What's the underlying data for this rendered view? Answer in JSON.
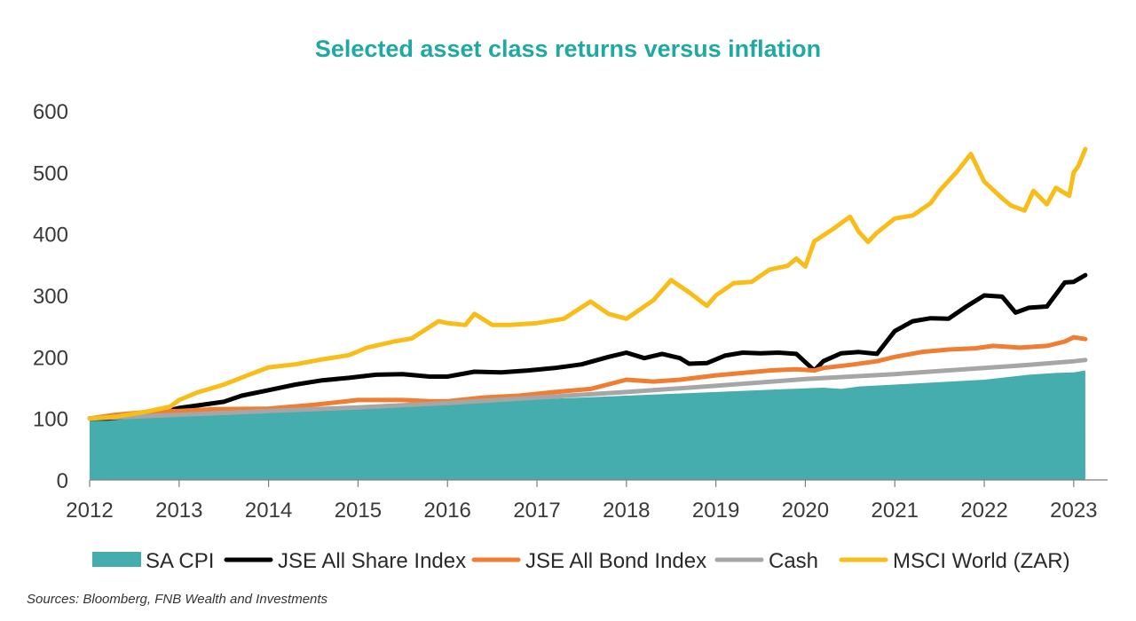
{
  "chart_data": {
    "type": "line",
    "title": "Selected asset class returns versus inflation",
    "xlabel": "",
    "ylabel": "",
    "xlim": [
      2012,
      2023.2
    ],
    "ylim": [
      0,
      600
    ],
    "y_ticks": [
      "0",
      "100",
      "200",
      "300",
      "400",
      "500",
      "600"
    ],
    "x_ticks": [
      "2012",
      "2013",
      "2014",
      "2015",
      "2016",
      "2017",
      "2018",
      "2019",
      "2020",
      "2021",
      "2022",
      "2023"
    ],
    "legend_position": "bottom",
    "grid": false,
    "series": [
      {
        "name": "SA CPI",
        "style": "area",
        "color": "#45adad",
        "points": [
          [
            2012.0,
            100
          ],
          [
            2013.0,
            106
          ],
          [
            2014.0,
            112
          ],
          [
            2015.0,
            117
          ],
          [
            2016.0,
            124
          ],
          [
            2017.0,
            131
          ],
          [
            2018.0,
            137
          ],
          [
            2019.0,
            143
          ],
          [
            2020.0,
            149
          ],
          [
            2020.2,
            150
          ],
          [
            2020.4,
            148
          ],
          [
            2020.6,
            152
          ],
          [
            2021.0,
            155
          ],
          [
            2021.5,
            159
          ],
          [
            2022.0,
            163
          ],
          [
            2022.5,
            171
          ],
          [
            2022.8,
            174
          ],
          [
            2023.0,
            175
          ],
          [
            2023.13,
            178
          ]
        ]
      },
      {
        "name": "JSE All Share Index",
        "style": "line",
        "color": "#000000",
        "points": [
          [
            2012.0,
            100
          ],
          [
            2012.2,
            100
          ],
          [
            2012.5,
            104
          ],
          [
            2012.8,
            110
          ],
          [
            2013.0,
            117
          ],
          [
            2013.2,
            121
          ],
          [
            2013.5,
            127
          ],
          [
            2013.7,
            137
          ],
          [
            2014.0,
            146
          ],
          [
            2014.3,
            155
          ],
          [
            2014.6,
            162
          ],
          [
            2014.9,
            166
          ],
          [
            2015.2,
            171
          ],
          [
            2015.5,
            172
          ],
          [
            2015.8,
            168
          ],
          [
            2016.0,
            168
          ],
          [
            2016.3,
            176
          ],
          [
            2016.6,
            175
          ],
          [
            2016.9,
            178
          ],
          [
            2017.2,
            182
          ],
          [
            2017.5,
            188
          ],
          [
            2017.8,
            200
          ],
          [
            2018.0,
            207
          ],
          [
            2018.2,
            198
          ],
          [
            2018.4,
            205
          ],
          [
            2018.6,
            198
          ],
          [
            2018.7,
            189
          ],
          [
            2018.9,
            190
          ],
          [
            2019.1,
            202
          ],
          [
            2019.3,
            207
          ],
          [
            2019.5,
            206
          ],
          [
            2019.7,
            207
          ],
          [
            2019.9,
            205
          ],
          [
            2020.1,
            178
          ],
          [
            2020.2,
            193
          ],
          [
            2020.4,
            206
          ],
          [
            2020.6,
            208
          ],
          [
            2020.8,
            205
          ],
          [
            2021.0,
            242
          ],
          [
            2021.2,
            258
          ],
          [
            2021.4,
            263
          ],
          [
            2021.6,
            262
          ],
          [
            2021.8,
            282
          ],
          [
            2022.0,
            300
          ],
          [
            2022.2,
            298
          ],
          [
            2022.35,
            272
          ],
          [
            2022.5,
            280
          ],
          [
            2022.7,
            282
          ],
          [
            2022.9,
            321
          ],
          [
            2023.0,
            322
          ],
          [
            2023.13,
            333
          ]
        ]
      },
      {
        "name": "JSE All Bond Index",
        "style": "line",
        "color": "#ef7d32",
        "points": [
          [
            2012.0,
            100
          ],
          [
            2012.3,
            106
          ],
          [
            2012.6,
            110
          ],
          [
            2013.0,
            112
          ],
          [
            2013.4,
            115
          ],
          [
            2014.0,
            116
          ],
          [
            2014.5,
            122
          ],
          [
            2015.0,
            130
          ],
          [
            2015.5,
            130
          ],
          [
            2015.8,
            128
          ],
          [
            2016.0,
            128
          ],
          [
            2016.4,
            134
          ],
          [
            2016.8,
            137
          ],
          [
            2017.2,
            143
          ],
          [
            2017.6,
            148
          ],
          [
            2018.0,
            163
          ],
          [
            2018.3,
            160
          ],
          [
            2018.6,
            163
          ],
          [
            2019.0,
            170
          ],
          [
            2019.3,
            174
          ],
          [
            2019.6,
            178
          ],
          [
            2019.9,
            180
          ],
          [
            2020.1,
            178
          ],
          [
            2020.2,
            182
          ],
          [
            2020.5,
            187
          ],
          [
            2020.8,
            193
          ],
          [
            2021.0,
            200
          ],
          [
            2021.3,
            208
          ],
          [
            2021.6,
            212
          ],
          [
            2021.9,
            214
          ],
          [
            2022.1,
            218
          ],
          [
            2022.4,
            215
          ],
          [
            2022.7,
            218
          ],
          [
            2022.9,
            225
          ],
          [
            2023.0,
            232
          ],
          [
            2023.13,
            229
          ]
        ]
      },
      {
        "name": "Cash",
        "style": "line",
        "color": "#a6a6a6",
        "points": [
          [
            2012.0,
            100
          ],
          [
            2013.0,
            106
          ],
          [
            2014.0,
            112
          ],
          [
            2015.0,
            118
          ],
          [
            2016.0,
            125
          ],
          [
            2017.0,
            134
          ],
          [
            2018.0,
            143
          ],
          [
            2019.0,
            153
          ],
          [
            2020.0,
            164
          ],
          [
            2021.0,
            172
          ],
          [
            2022.0,
            182
          ],
          [
            2022.5,
            187
          ],
          [
            2023.0,
            193
          ],
          [
            2023.13,
            195
          ]
        ]
      },
      {
        "name": "MSCI World (ZAR)",
        "style": "line",
        "color": "#f9bd19",
        "points": [
          [
            2012.0,
            100
          ],
          [
            2012.3,
            103
          ],
          [
            2012.6,
            110
          ],
          [
            2012.9,
            119
          ],
          [
            2013.0,
            130
          ],
          [
            2013.2,
            142
          ],
          [
            2013.5,
            155
          ],
          [
            2013.8,
            172
          ],
          [
            2014.0,
            183
          ],
          [
            2014.3,
            188
          ],
          [
            2014.6,
            196
          ],
          [
            2014.9,
            203
          ],
          [
            2015.1,
            215
          ],
          [
            2015.4,
            225
          ],
          [
            2015.6,
            230
          ],
          [
            2015.9,
            258
          ],
          [
            2016.0,
            255
          ],
          [
            2016.2,
            252
          ],
          [
            2016.3,
            270
          ],
          [
            2016.5,
            252
          ],
          [
            2016.7,
            252
          ],
          [
            2017.0,
            255
          ],
          [
            2017.3,
            262
          ],
          [
            2017.6,
            290
          ],
          [
            2017.8,
            270
          ],
          [
            2018.0,
            262
          ],
          [
            2018.3,
            292
          ],
          [
            2018.5,
            325
          ],
          [
            2018.7,
            305
          ],
          [
            2018.9,
            283
          ],
          [
            2019.0,
            300
          ],
          [
            2019.2,
            320
          ],
          [
            2019.4,
            322
          ],
          [
            2019.6,
            342
          ],
          [
            2019.8,
            348
          ],
          [
            2019.9,
            360
          ],
          [
            2020.0,
            347
          ],
          [
            2020.1,
            388
          ],
          [
            2020.3,
            407
          ],
          [
            2020.5,
            428
          ],
          [
            2020.6,
            403
          ],
          [
            2020.7,
            387
          ],
          [
            2020.8,
            402
          ],
          [
            2021.0,
            425
          ],
          [
            2021.2,
            430
          ],
          [
            2021.4,
            450
          ],
          [
            2021.5,
            470
          ],
          [
            2021.7,
            502
          ],
          [
            2021.85,
            530
          ],
          [
            2022.0,
            485
          ],
          [
            2022.2,
            458
          ],
          [
            2022.3,
            446
          ],
          [
            2022.45,
            438
          ],
          [
            2022.55,
            470
          ],
          [
            2022.7,
            448
          ],
          [
            2022.8,
            475
          ],
          [
            2022.95,
            462
          ],
          [
            2023.0,
            500
          ],
          [
            2023.05,
            510
          ],
          [
            2023.13,
            538
          ]
        ]
      }
    ]
  },
  "source_note": "Sources: Bloomberg, FNB Wealth and Investments",
  "colors": {
    "title": "#20a9a0",
    "axis": "#7f7f7f",
    "tick_text": "#3a3a3a"
  }
}
